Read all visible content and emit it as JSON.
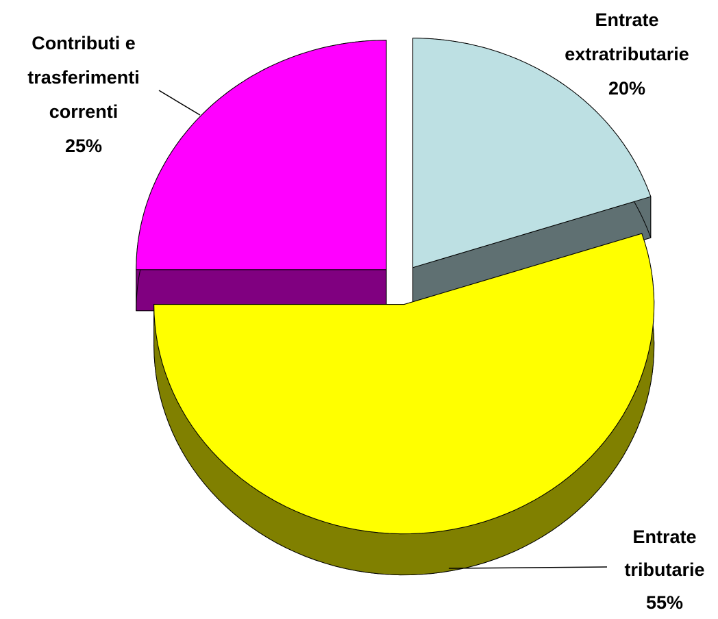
{
  "chart_data": {
    "type": "pie",
    "categories": [
      "Entrate extratributarie",
      "Entrate tributarie",
      "Contributi e trasferimenti correnti"
    ],
    "values": [
      20,
      55,
      25
    ],
    "value_labels": [
      "20%",
      "55%",
      "25%"
    ],
    "colors": [
      "#bde0e3",
      "#ffff00",
      "#ff00ff"
    ]
  }
}
